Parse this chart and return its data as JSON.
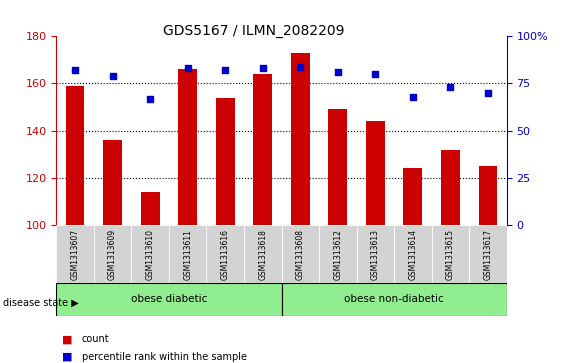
{
  "title": "GDS5167 / ILMN_2082209",
  "samples": [
    "GSM1313607",
    "GSM1313609",
    "GSM1313610",
    "GSM1313611",
    "GSM1313616",
    "GSM1313618",
    "GSM1313608",
    "GSM1313612",
    "GSM1313613",
    "GSM1313614",
    "GSM1313615",
    "GSM1313617"
  ],
  "bar_values": [
    159,
    136,
    114,
    166,
    154,
    164,
    173,
    149,
    144,
    124,
    132,
    125
  ],
  "dot_values": [
    82,
    79,
    67,
    83,
    82,
    83,
    84,
    81,
    80,
    68,
    73,
    70
  ],
  "bar_color": "#cc0000",
  "dot_color": "#0000cc",
  "ylim_left": [
    100,
    180
  ],
  "ylim_right": [
    0,
    100
  ],
  "yticks_left": [
    100,
    120,
    140,
    160,
    180
  ],
  "yticks_right": [
    0,
    25,
    50,
    75,
    100
  ],
  "yticklabels_right": [
    "0",
    "25",
    "50",
    "75",
    "100%"
  ],
  "group1_label": "obese diabetic",
  "group2_label": "obese non-diabetic",
  "group1_count": 6,
  "group2_count": 6,
  "disease_state_label": "disease state",
  "legend_count_label": "count",
  "legend_percentile_label": "percentile rank within the sample",
  "group_color": "#90ee90",
  "bar_bottom": 100,
  "label_box_color": "#d3d3d3"
}
